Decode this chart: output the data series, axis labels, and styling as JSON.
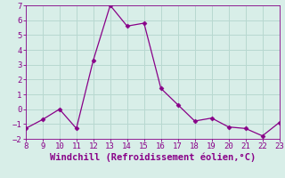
{
  "x": [
    8,
    9,
    10,
    11,
    12,
    13,
    14,
    15,
    16,
    17,
    18,
    19,
    20,
    21,
    22,
    23
  ],
  "y": [
    -1.3,
    -0.7,
    0.0,
    -1.3,
    3.3,
    7.0,
    5.6,
    5.8,
    1.4,
    0.3,
    -0.8,
    -0.6,
    -1.2,
    -1.3,
    -1.8,
    -0.9
  ],
  "xlim": [
    8,
    23
  ],
  "ylim": [
    -2,
    7
  ],
  "xticks": [
    8,
    9,
    10,
    11,
    12,
    13,
    14,
    15,
    16,
    17,
    18,
    19,
    20,
    21,
    22,
    23
  ],
  "yticks": [
    -2,
    -1,
    0,
    1,
    2,
    3,
    4,
    5,
    6,
    7
  ],
  "xlabel": "Windchill (Refroidissement éolien,°C)",
  "line_color": "#880088",
  "marker": "D",
  "marker_size": 2.5,
  "bg_color": "#d8eee8",
  "grid_color": "#b8d8d0",
  "tick_fontsize": 6.5,
  "xlabel_fontsize": 7.5
}
